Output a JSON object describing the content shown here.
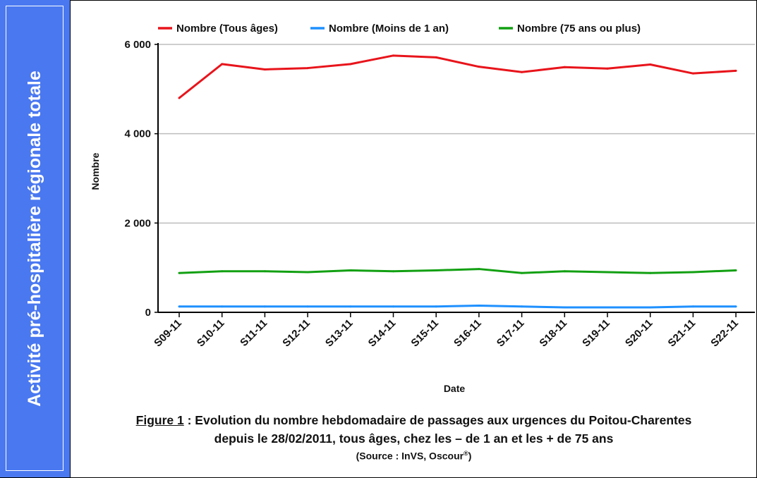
{
  "sidebar": {
    "title": "Activité pré-hospitalière régionale totale"
  },
  "caption": {
    "figure_label": "Figure 1",
    "line1_rest": " : Evolution du nombre hebdomadaire de passages aux urgences du Poitou-Charentes",
    "line2": "depuis le 28/02/2011, tous âges, chez les – de 1 an et les  + de 75 ans",
    "source_prefix": "(Source : InVS, Oscour",
    "source_sup": "®",
    "source_suffix": ")"
  },
  "chart_data": {
    "type": "line",
    "xlabel": "Date",
    "ylabel": "Nombre",
    "ylim": [
      0,
      6000
    ],
    "yticks": [
      0,
      2000,
      4000,
      6000
    ],
    "ytick_labels": [
      "0",
      "2 000",
      "4 000",
      "6 000"
    ],
    "grid": true,
    "legend_position": "top",
    "categories": [
      "S09-11",
      "S10-11",
      "S11-11",
      "S12-11",
      "S13-11",
      "S14-11",
      "S15-11",
      "S16-11",
      "S17-11",
      "S18-11",
      "S19-11",
      "S20-11",
      "S21-11",
      "S22-11"
    ],
    "series": [
      {
        "name": "Nombre (Tous âges)",
        "color": "#e8141b",
        "values": [
          4800,
          5560,
          5440,
          5470,
          5560,
          5750,
          5710,
          5500,
          5380,
          5490,
          5460,
          5550,
          5350,
          5410
        ]
      },
      {
        "name": "Nombre (Moins de 1 an)",
        "color": "#1e90ff",
        "values": [
          130,
          130,
          130,
          130,
          130,
          130,
          130,
          150,
          130,
          110,
          110,
          110,
          130,
          130
        ]
      },
      {
        "name": "Nombre (75 ans ou plus)",
        "color": "#12a012",
        "values": [
          880,
          920,
          920,
          900,
          940,
          920,
          940,
          970,
          880,
          920,
          900,
          880,
          900,
          940
        ]
      }
    ]
  }
}
